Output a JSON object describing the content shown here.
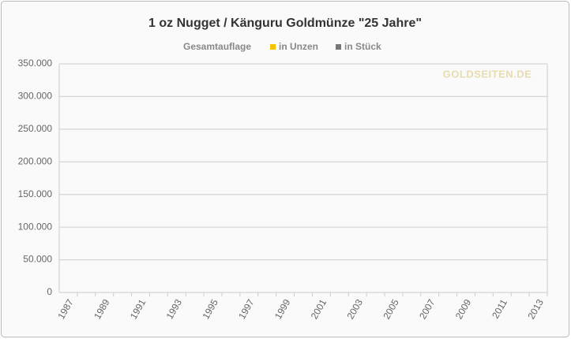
{
  "chart_data": {
    "type": "bar",
    "title": "1 oz Nugget / Känguru Goldmünze \"25 Jahre\"",
    "legend_title": "Gesamtauflage",
    "watermark": "GOLDSEITEN.DE",
    "categories": [
      "1987",
      null,
      "1989",
      null,
      "1991",
      null,
      "1993",
      null,
      "1995",
      null,
      "1997",
      null,
      "1999",
      null,
      "2001",
      null,
      "2003",
      null,
      "2005",
      null,
      "2007",
      null,
      "2009",
      null,
      "2011",
      null,
      "2013"
    ],
    "series": [
      {
        "name": "in Unzen",
        "color": "#f5c400",
        "values": [
          null,
          null,
          null,
          null,
          null,
          null,
          null,
          null,
          null,
          null,
          null,
          null,
          null,
          null,
          null,
          null,
          null,
          null,
          null,
          null,
          null,
          null,
          null,
          null,
          null,
          null,
          null
        ]
      },
      {
        "name": "in Stück",
        "color": "#777777",
        "values": [
          null,
          null,
          null,
          null,
          null,
          null,
          null,
          null,
          null,
          null,
          null,
          null,
          null,
          null,
          null,
          null,
          null,
          null,
          null,
          null,
          null,
          null,
          null,
          null,
          null,
          null,
          null
        ]
      }
    ],
    "ylim": [
      0,
      350000
    ],
    "yticks": [
      0,
      {
        "value": 50000,
        "label": "50.000"
      },
      {
        "value": 100000,
        "label": "100.000"
      },
      {
        "value": 150000,
        "label": "150.000"
      },
      {
        "value": 200000,
        "label": "200.000"
      },
      {
        "value": 250000,
        "label": "250.000"
      },
      {
        "value": 300000,
        "label": "300.000"
      },
      {
        "value": 350000,
        "label": "350.000"
      }
    ],
    "grid": true
  }
}
